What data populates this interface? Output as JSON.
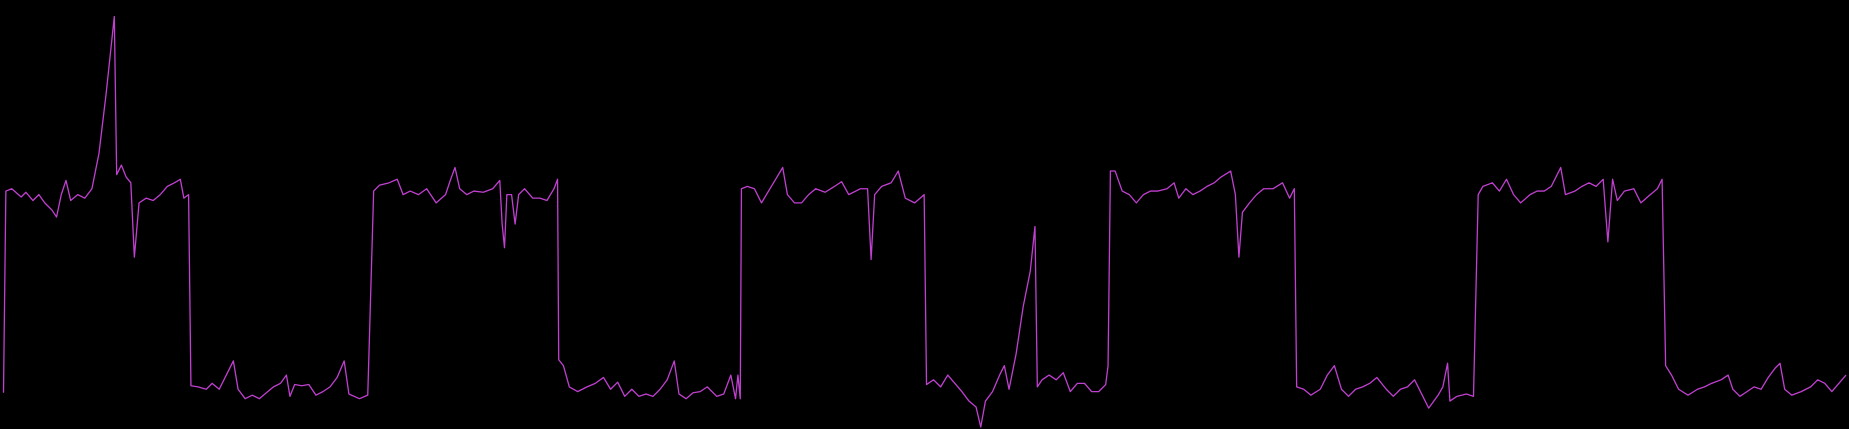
{
  "chart_data": {
    "type": "line",
    "color": "#c040d0",
    "x": [
      3,
      5,
      10,
      18,
      22,
      28,
      33,
      38,
      44,
      48,
      52,
      56,
      60,
      66,
      72,
      78,
      84,
      90,
      97,
      99,
      103,
      107,
      111,
      114,
      118,
      124,
      130,
      136,
      142,
      148,
      153,
      156,
      160,
      162,
      168,
      175,
      180,
      186,
      192,
      198,
      202,
      208,
      214,
      220,
      226,
      232,
      238,
      243,
      246,
      250,
      256,
      262,
      268,
      274,
      280,
      286,
      292,
      296,
      305,
      312,
      317,
      322,
      330,
      337,
      342,
      348,
      355,
      362,
      370,
      378,
      382,
      386,
      390,
      396,
      402,
      410,
      418,
      424,
      426,
      428,
      430,
      434,
      437,
      440,
      445,
      452,
      458,
      464,
      470,
      473,
      474,
      478,
      483,
      490,
      498,
      505,
      512,
      518,
      524,
      530,
      536,
      542,
      548,
      554,
      560,
      566,
      572,
      576,
      582,
      588,
      594,
      600,
      608,
      614,
      620,
      624,
      626,
      628,
      629,
      634,
      640,
      646,
      652,
      658,
      664,
      668,
      674,
      680,
      686,
      692,
      700,
      708,
      714,
      720,
      730,
      736,
      739,
      742,
      748,
      756,
      762,
      768,
      776,
      784,
      786,
      792,
      798,
      804,
      810,
      816,
      822,
      828,
      832,
      836,
      842,
      848,
      852,
      856,
      862,
      868,
      874,
      878,
      880,
      884,
      890,
      896,
      902,
      908,
      914,
      920,
      926,
      932,
      938,
      940,
      942,
      946,
      952,
      958,
      964,
      970,
      976,
      982,
      990,
      996,
      1000,
      1006,
      1012,
      1018,
      1024,
      1030,
      1036,
      1044,
      1048,
      1051,
      1054,
      1060,
      1066,
      1072,
      1080,
      1088,
      1094,
      1098,
      1100,
      1106,
      1112,
      1120,
      1126,
      1132,
      1138,
      1144,
      1150,
      1156,
      1162,
      1168,
      1176,
      1182,
      1188,
      1194,
      1200,
      1206,
      1212,
      1220,
      1224,
      1228,
      1230,
      1236,
      1244,
      1250,
      1254,
      1258,
      1266,
      1272,
      1278,
      1284,
      1290,
      1298,
      1304,
      1310,
      1316,
      1320,
      1324,
      1328,
      1336,
      1342,
      1348,
      1354,
      1360,
      1364,
      1368,
      1372,
      1378,
      1386,
      1392,
      1400,
      1406,
      1410,
      1413,
      1418,
      1424,
      1432,
      1440,
      1446,
      1452,
      1460,
      1466,
      1470,
      1476,
      1482,
      1488,
      1494,
      1500,
      1506,
      1510,
      1514,
      1520,
      1528,
      1536,
      1542,
      1548,
      1554,
      1560,
      1566
    ],
    "values": [
      31,
      202,
      204,
      197,
      201,
      194,
      199,
      192,
      186,
      180,
      199,
      211,
      194,
      199,
      196,
      204,
      234,
      284,
      350,
      216,
      224,
      214,
      209,
      146,
      192,
      196,
      194,
      199,
      206,
      209,
      212,
      196,
      199,
      37,
      36,
      34,
      39,
      34,
      46,
      58,
      34,
      26,
      29,
      26,
      31,
      36,
      39,
      46,
      28,
      38,
      37,
      38,
      29,
      32,
      36,
      44,
      58,
      30,
      26,
      29,
      202,
      207,
      209,
      212,
      199,
      202,
      199,
      204,
      192,
      199,
      211,
      222,
      204,
      199,
      202,
      201,
      204,
      211,
      174,
      154,
      199,
      199,
      174,
      199,
      204,
      196,
      196,
      194,
      204,
      212,
      59,
      54,
      36,
      32,
      36,
      39,
      44,
      34,
      40,
      28,
      34,
      28,
      30,
      28,
      34,
      42,
      58,
      30,
      26,
      31,
      32,
      36,
      28,
      30,
      46,
      26,
      46,
      26,
      204,
      206,
      204,
      192,
      202,
      212,
      222,
      199,
      192,
      192,
      199,
      204,
      201,
      206,
      210,
      199,
      204,
      204,
      144,
      199,
      206,
      209,
      219,
      196,
      192,
      199,
      38,
      42,
      36,
      46,
      39,
      32,
      24,
      19,
      2,
      24,
      32,
      46,
      54,
      34,
      64,
      104,
      134,
      172,
      36,
      42,
      46,
      42,
      48,
      32,
      39,
      39,
      32,
      32,
      38,
      54,
      219,
      219,
      202,
      199,
      192,
      199,
      202,
      202,
      204,
      209,
      196,
      204,
      199,
      202,
      206,
      209,
      214,
      219,
      199,
      146,
      184,
      192,
      199,
      204,
      204,
      209,
      196,
      204,
      36,
      34,
      29,
      34,
      46,
      54,
      34,
      28,
      34,
      36,
      39,
      44,
      34,
      28,
      34,
      36,
      42,
      30,
      18,
      29,
      36,
      56,
      24,
      28,
      30,
      28,
      199,
      206,
      209,
      202,
      212,
      199,
      192,
      199,
      202,
      202,
      206,
      214,
      222,
      199,
      202,
      206,
      209,
      206,
      212,
      159,
      212,
      194,
      202,
      204,
      192,
      199,
      204,
      212,
      54,
      46,
      34,
      29,
      34,
      36,
      39,
      42,
      46,
      34,
      28,
      32,
      36,
      34,
      44,
      52,
      56,
      34,
      29,
      32,
      36,
      42,
      39,
      32,
      39,
      46
    ]
  }
}
